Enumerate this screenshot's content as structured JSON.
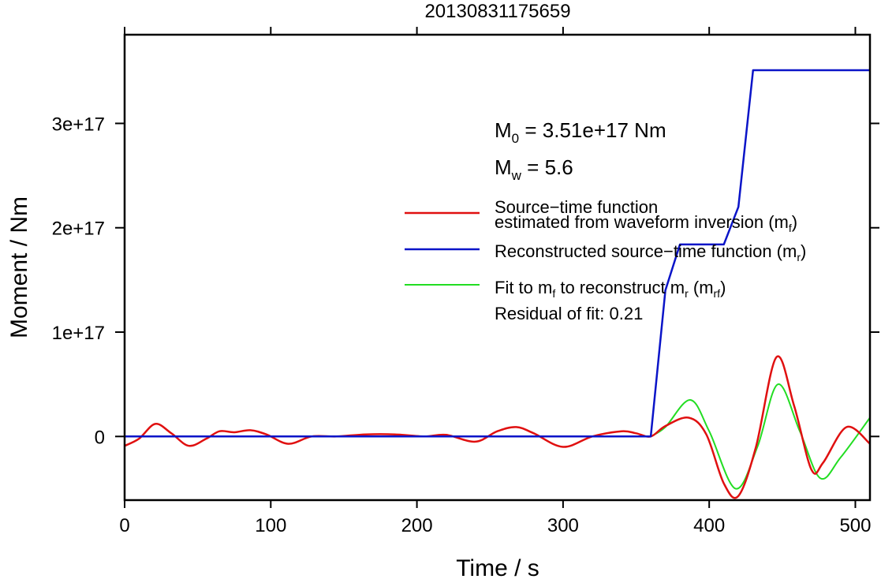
{
  "chart_data": {
    "type": "line",
    "title": "20130831175659",
    "xlabel": "Time / s",
    "ylabel": "Moment / Nm",
    "xlim": [
      0,
      510
    ],
    "ylim": [
      -6.1e+16,
      3.85e+17
    ],
    "grid": false,
    "x_ticks": [
      0,
      100,
      200,
      300,
      400,
      500
    ],
    "x_tick_labels": [
      "0",
      "100",
      "200",
      "300",
      "400",
      "500"
    ],
    "y_ticks": [
      0,
      1e+17,
      2e+17,
      3e+17
    ],
    "y_tick_labels": [
      "0",
      "1e+17",
      "2e+17",
      "3e+17"
    ],
    "annotations": {
      "m0": {
        "prefix": "M",
        "sub": "0",
        "suffix": " = 3.51e+17 Nm"
      },
      "mw": {
        "prefix": "M",
        "sub": "w",
        "suffix": " = 5.6"
      },
      "residual": "Residual of fit: 0.21"
    },
    "legend": {
      "placement": "center-right",
      "entries": [
        {
          "series": 0,
          "line1": "Source−time function",
          "line2_prefix": "estimated from waveform inversion (m",
          "line2_sub": "f",
          "line2_suffix": ")"
        },
        {
          "series": 1,
          "prefix": "Reconstructed source−time function (m",
          "sub": "r",
          "suffix": ")"
        },
        {
          "series": 2,
          "parts": [
            {
              "t": "Fit to m"
            },
            {
              "t": "f",
              "sub": true
            },
            {
              "t": " to reconstruct m"
            },
            {
              "t": "r",
              "sub": true
            },
            {
              "t": " (m"
            },
            {
              "t": "rf",
              "sub": true
            },
            {
              "t": ")"
            }
          ]
        }
      ]
    },
    "series": [
      {
        "color": "#e01010",
        "x": [
          0,
          10,
          21,
          32,
          44,
          56,
          65,
          75,
          86,
          97,
          112,
          128,
          145,
          165,
          185,
          205,
          220,
          240,
          255,
          268,
          280,
          300,
          320,
          340,
          350,
          360,
          370,
          386,
          398,
          410,
          420,
          432,
          446,
          458,
          470,
          478,
          494,
          510
        ],
        "y": [
          -9000000000000000.0,
          -2000000000000000.0,
          1.2e+16,
          3000000000000000.0,
          -9000000000000000.0,
          -2000000000000000.0,
          5000000000000000.0,
          4000000000000000.0,
          6000000000000000.0,
          2000000000000000.0,
          -7000000000000000.0,
          0,
          0,
          2000000000000000.0,
          2000000000000000.0,
          0,
          1500000000000000.0,
          -5000000000000000.0,
          5000000000000000.0,
          9000000000000000.0,
          3000000000000000.0,
          -1e+16,
          0,
          5000000000000000.0,
          3000000000000000.0,
          0,
          1e+16,
          1.8e+16,
          2000000000000000.0,
          -4.5e+16,
          -5.7e+16,
          -1e+16,
          7.6e+16,
          3e+16,
          -3.2e+16,
          -2.5e+16,
          9000000000000000.0,
          -7000000000000000.0
        ]
      },
      {
        "color": "#0a14c8",
        "x": [
          0,
          360,
          370,
          380,
          410,
          420,
          430,
          510
        ],
        "y": [
          0,
          0,
          1.4e+17,
          1.84e+17,
          1.84e+17,
          2.2e+17,
          3.51e+17,
          3.51e+17
        ]
      },
      {
        "color": "#22dd22",
        "x": [
          360,
          370,
          387,
          400,
          418,
          433,
          447,
          462,
          476,
          490,
          510
        ],
        "y": [
          0,
          9000000000000000.0,
          3.5e+16,
          5000000000000000.0,
          -5e+16,
          -1e+16,
          5e+16,
          5000000000000000.0,
          -4e+16,
          -2e+16,
          1.8e+16
        ]
      }
    ]
  }
}
